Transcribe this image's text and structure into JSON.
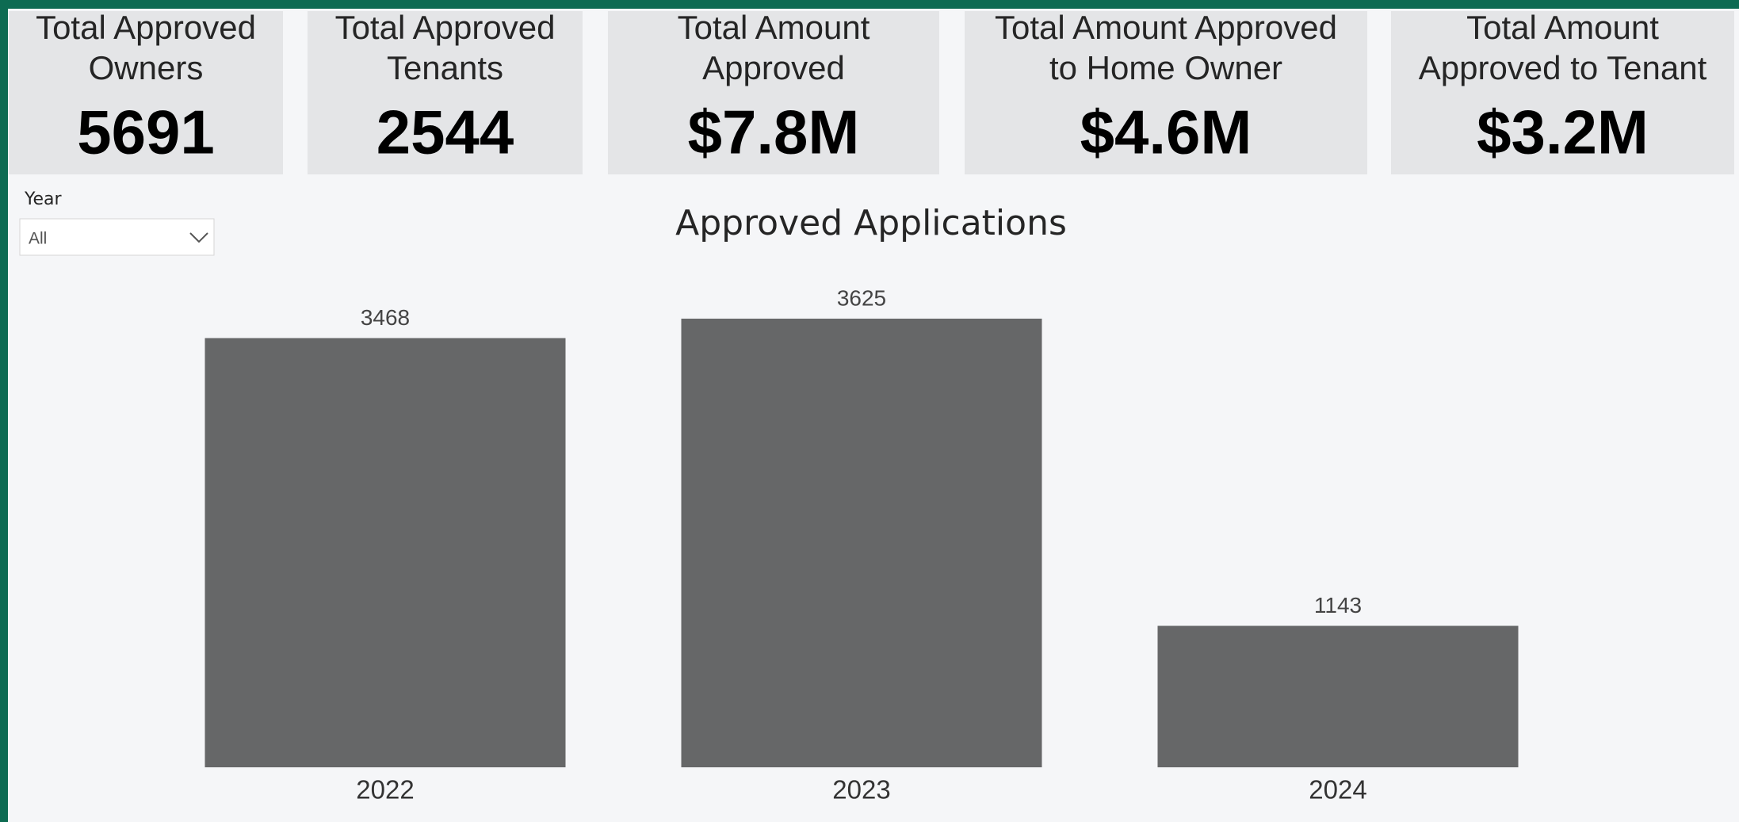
{
  "kpis": [
    {
      "label": [
        "Total Approved",
        "Owners"
      ],
      "value": "5691"
    },
    {
      "label": [
        "Total Approved",
        "Tenants"
      ],
      "value": "2544"
    },
    {
      "label": [
        "Total Amount",
        "Approved"
      ],
      "value": "$7.8M"
    },
    {
      "label": [
        "Total Amount Approved",
        "to Home Owner"
      ],
      "value": "$4.6M"
    },
    {
      "label": [
        "Total Amount",
        "Approved to Tenant"
      ],
      "value": "$3.2M"
    }
  ],
  "filter": {
    "label": "Year",
    "value": "All"
  },
  "chart_data": {
    "type": "bar",
    "title": "Approved Applications",
    "categories": [
      "2022",
      "2023",
      "2024"
    ],
    "values": [
      3468,
      3625,
      1143
    ],
    "color": "#666768"
  }
}
